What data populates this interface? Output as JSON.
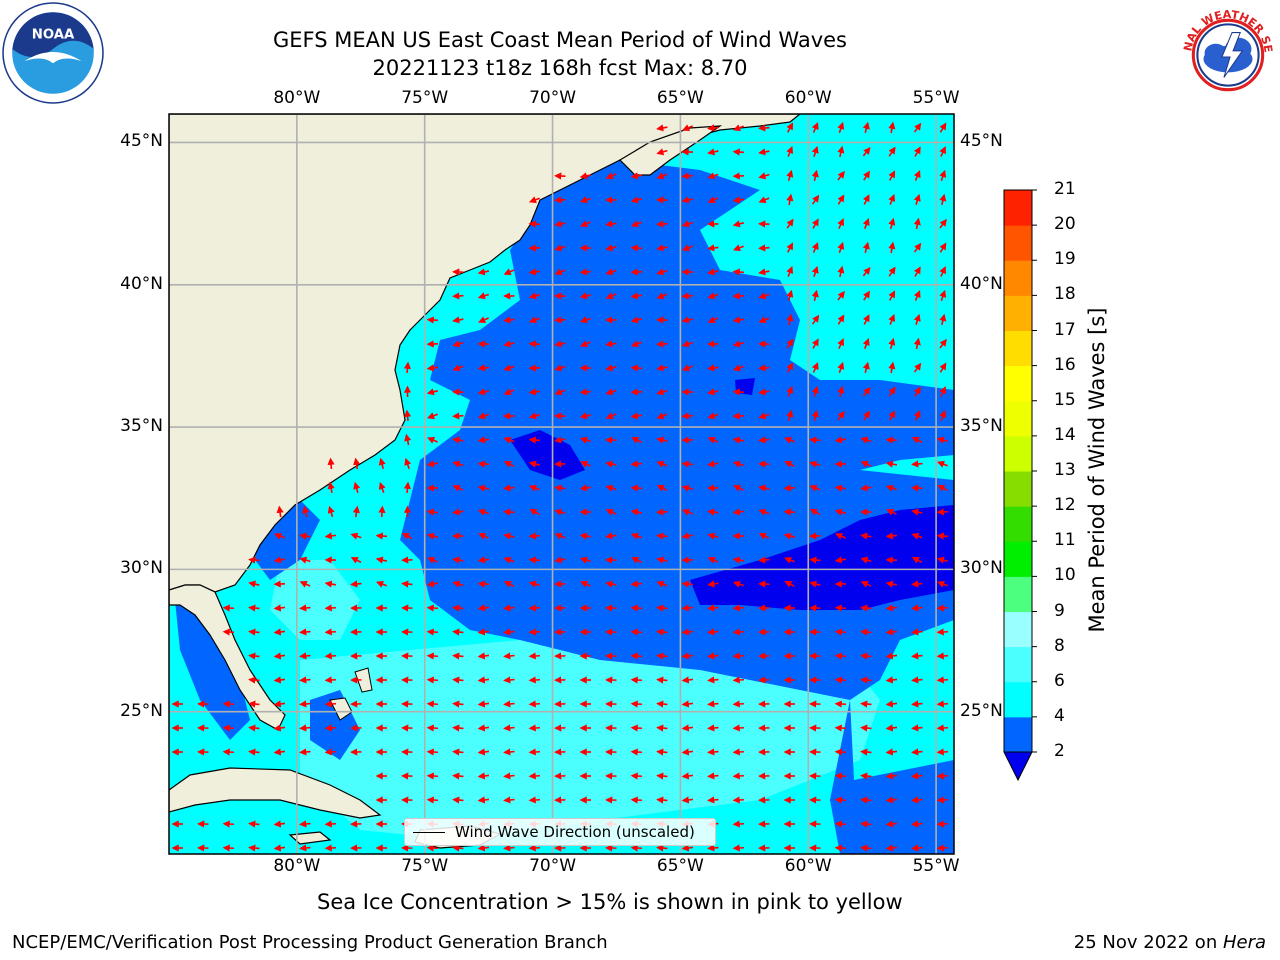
{
  "header": {
    "title_line1": "GEFS MEAN US East Coast Mean Period of Wind Waves",
    "title_line2": "20221123 t18z 168h fcst   Max: 8.70"
  },
  "logos": {
    "left": {
      "name": "noaa-logo",
      "text": "NOAA"
    },
    "right": {
      "name": "nws-logo",
      "text": "NATIONAL WEATHER SERVICE"
    }
  },
  "map": {
    "lon_labels": [
      "80°W",
      "75°W",
      "70°W",
      "65°W",
      "60°W",
      "55°W"
    ],
    "lat_labels": [
      "45°N",
      "40°N",
      "35°N",
      "30°N",
      "25°N"
    ],
    "lon_range": [
      -85,
      -54.3
    ],
    "lat_range": [
      20,
      46
    ],
    "lon_ticks": [
      -80,
      -75,
      -70,
      -65,
      -60,
      -55
    ],
    "lat_ticks": [
      45,
      40,
      35,
      30,
      25
    ],
    "arrow_color": "#ff0000",
    "land_color": "#efefdc",
    "grid_color": "#b0b0b0",
    "legend_label": "Wind Wave Direction (unscaled)"
  },
  "colorbar": {
    "label": "Mean Period of Wind Waves [s]",
    "ticks": [
      "2",
      "4",
      "6",
      "8",
      "9",
      "10",
      "11",
      "12",
      "13",
      "14",
      "15",
      "16",
      "17",
      "18",
      "19",
      "20",
      "21"
    ],
    "colors": [
      "#0066ff",
      "#00ffff",
      "#4cffff",
      "#99ffff",
      "#4cff7f",
      "#00ee00",
      "#33dd00",
      "#88dd00",
      "#ccff00",
      "#eeff00",
      "#ffff00",
      "#ffdd00",
      "#ffb000",
      "#ff8800",
      "#ff5500",
      "#ff2200",
      "#ff0000"
    ],
    "under_color": "#0000ee"
  },
  "caption": "Sea Ice Concentration > 15% is shown in pink to yellow",
  "footer": {
    "left": "NCEP/EMC/Verification Post Processing Product Generation Branch",
    "right_date": "25 Nov 2022 on ",
    "right_host": "Hera"
  }
}
